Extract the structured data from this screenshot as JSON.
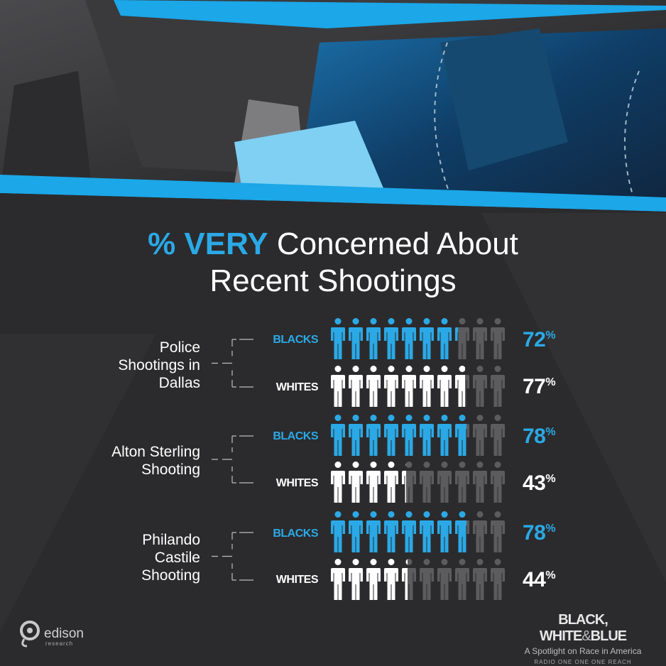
{
  "title": {
    "highlight": "% VERY",
    "rest_line1": "Concerned About",
    "line2": "Recent Shootings"
  },
  "colors": {
    "blue": "#2ba9e6",
    "white": "#ffffff",
    "grey": "#5c5c5e",
    "background": "#2b2b2d"
  },
  "icon": "person-icon",
  "chart_data": {
    "type": "pictograph",
    "title": "% VERY Concerned About Recent Shootings",
    "icons_per_row": 10,
    "unit": "%",
    "groups": [
      {
        "name": "Police Shootings in Dallas",
        "name_lines": [
          "Police",
          "Shootings in",
          "Dallas"
        ],
        "series": [
          {
            "name": "BLACKS",
            "value": 72
          },
          {
            "name": "WHITES",
            "value": 77
          }
        ]
      },
      {
        "name": "Alton Sterling Shooting",
        "name_lines": [
          "Alton Sterling",
          "Shooting"
        ],
        "series": [
          {
            "name": "BLACKS",
            "value": 78
          },
          {
            "name": "WHITES",
            "value": 43
          }
        ]
      },
      {
        "name": "Philando Castile Shooting",
        "name_lines": [
          "Philando",
          "Castile",
          "Shooting"
        ],
        "series": [
          {
            "name": "BLACKS",
            "value": 78
          },
          {
            "name": "WHITES",
            "value": 44
          }
        ]
      }
    ]
  },
  "footer": {
    "logo_name": "edison",
    "logo_sub": "research",
    "brand_black_white": "BLACK, WHITE",
    "brand_amp": "&",
    "brand_blue": "BLUE",
    "brand_subtitle": "A Spotlight on Race in America",
    "partners": "RADIO ONE   ONE   ONE REACH"
  }
}
